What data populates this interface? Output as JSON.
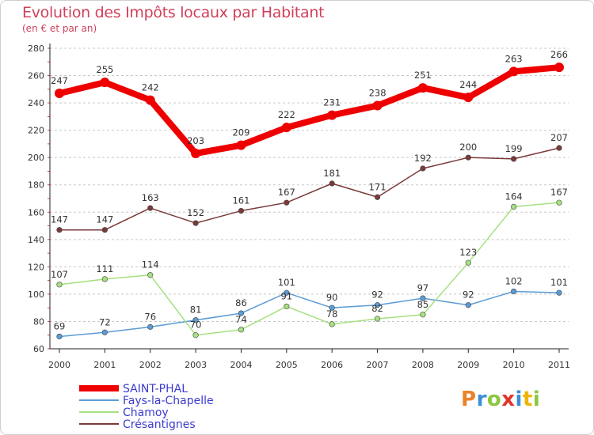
{
  "header": {
    "title": "Evolution des Impôts locaux par Habitant",
    "subtitle": "(en € et par an)"
  },
  "logo": {
    "chars": [
      "P",
      "r",
      "o",
      "x",
      "i",
      "t",
      "i"
    ],
    "colors": [
      "#e8832a",
      "#3a8fd6",
      "#8cc63f",
      "#e0342c",
      "#3a8fd6",
      "#f0b400",
      "#8cc63f"
    ]
  },
  "chart_data": {
    "type": "line",
    "title": "Evolution des Impôts locaux par Habitant",
    "subtitle": "(en € et par an)",
    "xlabel": "",
    "ylabel": "",
    "x": [
      "2000",
      "2001",
      "2002",
      "2003",
      "2004",
      "2005",
      "2006",
      "2007",
      "2008",
      "2009",
      "2010",
      "2011"
    ],
    "ylim": [
      60,
      280
    ],
    "yticks": [
      60,
      80,
      100,
      120,
      140,
      160,
      180,
      200,
      220,
      240,
      260,
      280
    ],
    "grid": "horizontal dashed",
    "legend": "bottom-left",
    "series": [
      {
        "name": "SAINT-PHAL",
        "color": "#ee0000",
        "values": [
          247,
          255,
          242,
          203,
          209,
          222,
          231,
          238,
          251,
          244,
          263,
          266
        ],
        "labels": [
          "247",
          "255",
          "242",
          "203",
          "209",
          "222",
          "231",
          "238",
          "251",
          "244",
          "263",
          "266"
        ]
      },
      {
        "name": "Fays-la-Chapelle",
        "color": "#5b9bd5",
        "values": [
          69,
          72,
          76,
          81,
          86,
          101,
          90,
          92,
          97,
          92,
          102,
          101
        ],
        "labels": [
          "69",
          "72",
          "76",
          "81",
          "86",
          "101",
          "90",
          "92",
          "97",
          "92",
          "102",
          "101"
        ]
      },
      {
        "name": "Chamoy",
        "color": "#a6e07f",
        "values": [
          107,
          111,
          114,
          70,
          74,
          91,
          78,
          82,
          85,
          123,
          164,
          167
        ],
        "labels": [
          "107",
          "111",
          "114",
          "70",
          "74",
          "91",
          "78",
          "82",
          "85",
          "123",
          "164",
          "167"
        ]
      },
      {
        "name": "Crésantignes",
        "color": "#7a3a3a",
        "values": [
          147,
          147,
          163,
          152,
          161,
          167,
          181,
          171,
          192,
          200,
          199,
          207
        ],
        "labels": [
          "147",
          "147",
          "163",
          "152",
          "161",
          "167",
          "181",
          "171",
          "192",
          "200",
          "199",
          "207"
        ]
      }
    ]
  }
}
